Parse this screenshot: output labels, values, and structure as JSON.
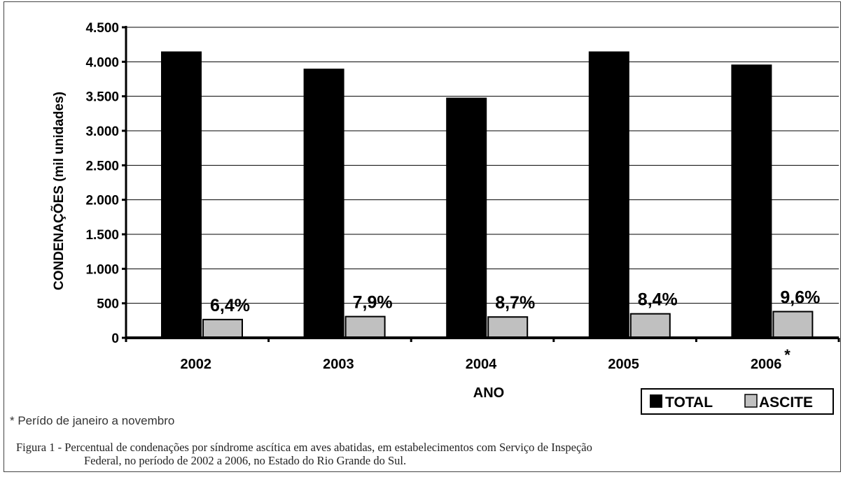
{
  "chart_data": {
    "type": "bar",
    "categories": [
      "2002",
      "2003",
      "2004",
      "2005",
      "2006"
    ],
    "category_markers": [
      "",
      "",
      "",
      "",
      "*"
    ],
    "series": [
      {
        "name": "TOTAL",
        "color": "#000000",
        "values": [
          4150,
          3900,
          3480,
          4150,
          3960
        ]
      },
      {
        "name": "ASCITE",
        "color": "#c0c0c0",
        "values": [
          265,
          308,
          302,
          348,
          380
        ]
      }
    ],
    "data_labels": [
      "6,4%",
      "7,9%",
      "8,7%",
      "8,4%",
      "9,6%"
    ],
    "xlabel": "ANO",
    "ylabel": "CONDENAÇÕES (mil unidades)",
    "ylim": [
      0,
      4500
    ],
    "yticks": [
      0,
      500,
      1000,
      1500,
      2000,
      2500,
      3000,
      3500,
      4000,
      4500
    ],
    "ytick_labels": [
      "0",
      "500",
      "1.000",
      "1.500",
      "2.000",
      "2.500",
      "3.000",
      "3.500",
      "4.000",
      "4.500"
    ],
    "grid": true,
    "legend_position": "bottom-right"
  },
  "footnote": "* Perído de janeiro a novembro",
  "caption": {
    "line1": "Figura 1 - Percentual de condenações por síndrome ascítica em aves abatidas, em estabelecimentos com Serviço de Inspeção",
    "line2": "Federal, no período de 2002 a 2006, no Estado do Rio Grande do Sul."
  }
}
